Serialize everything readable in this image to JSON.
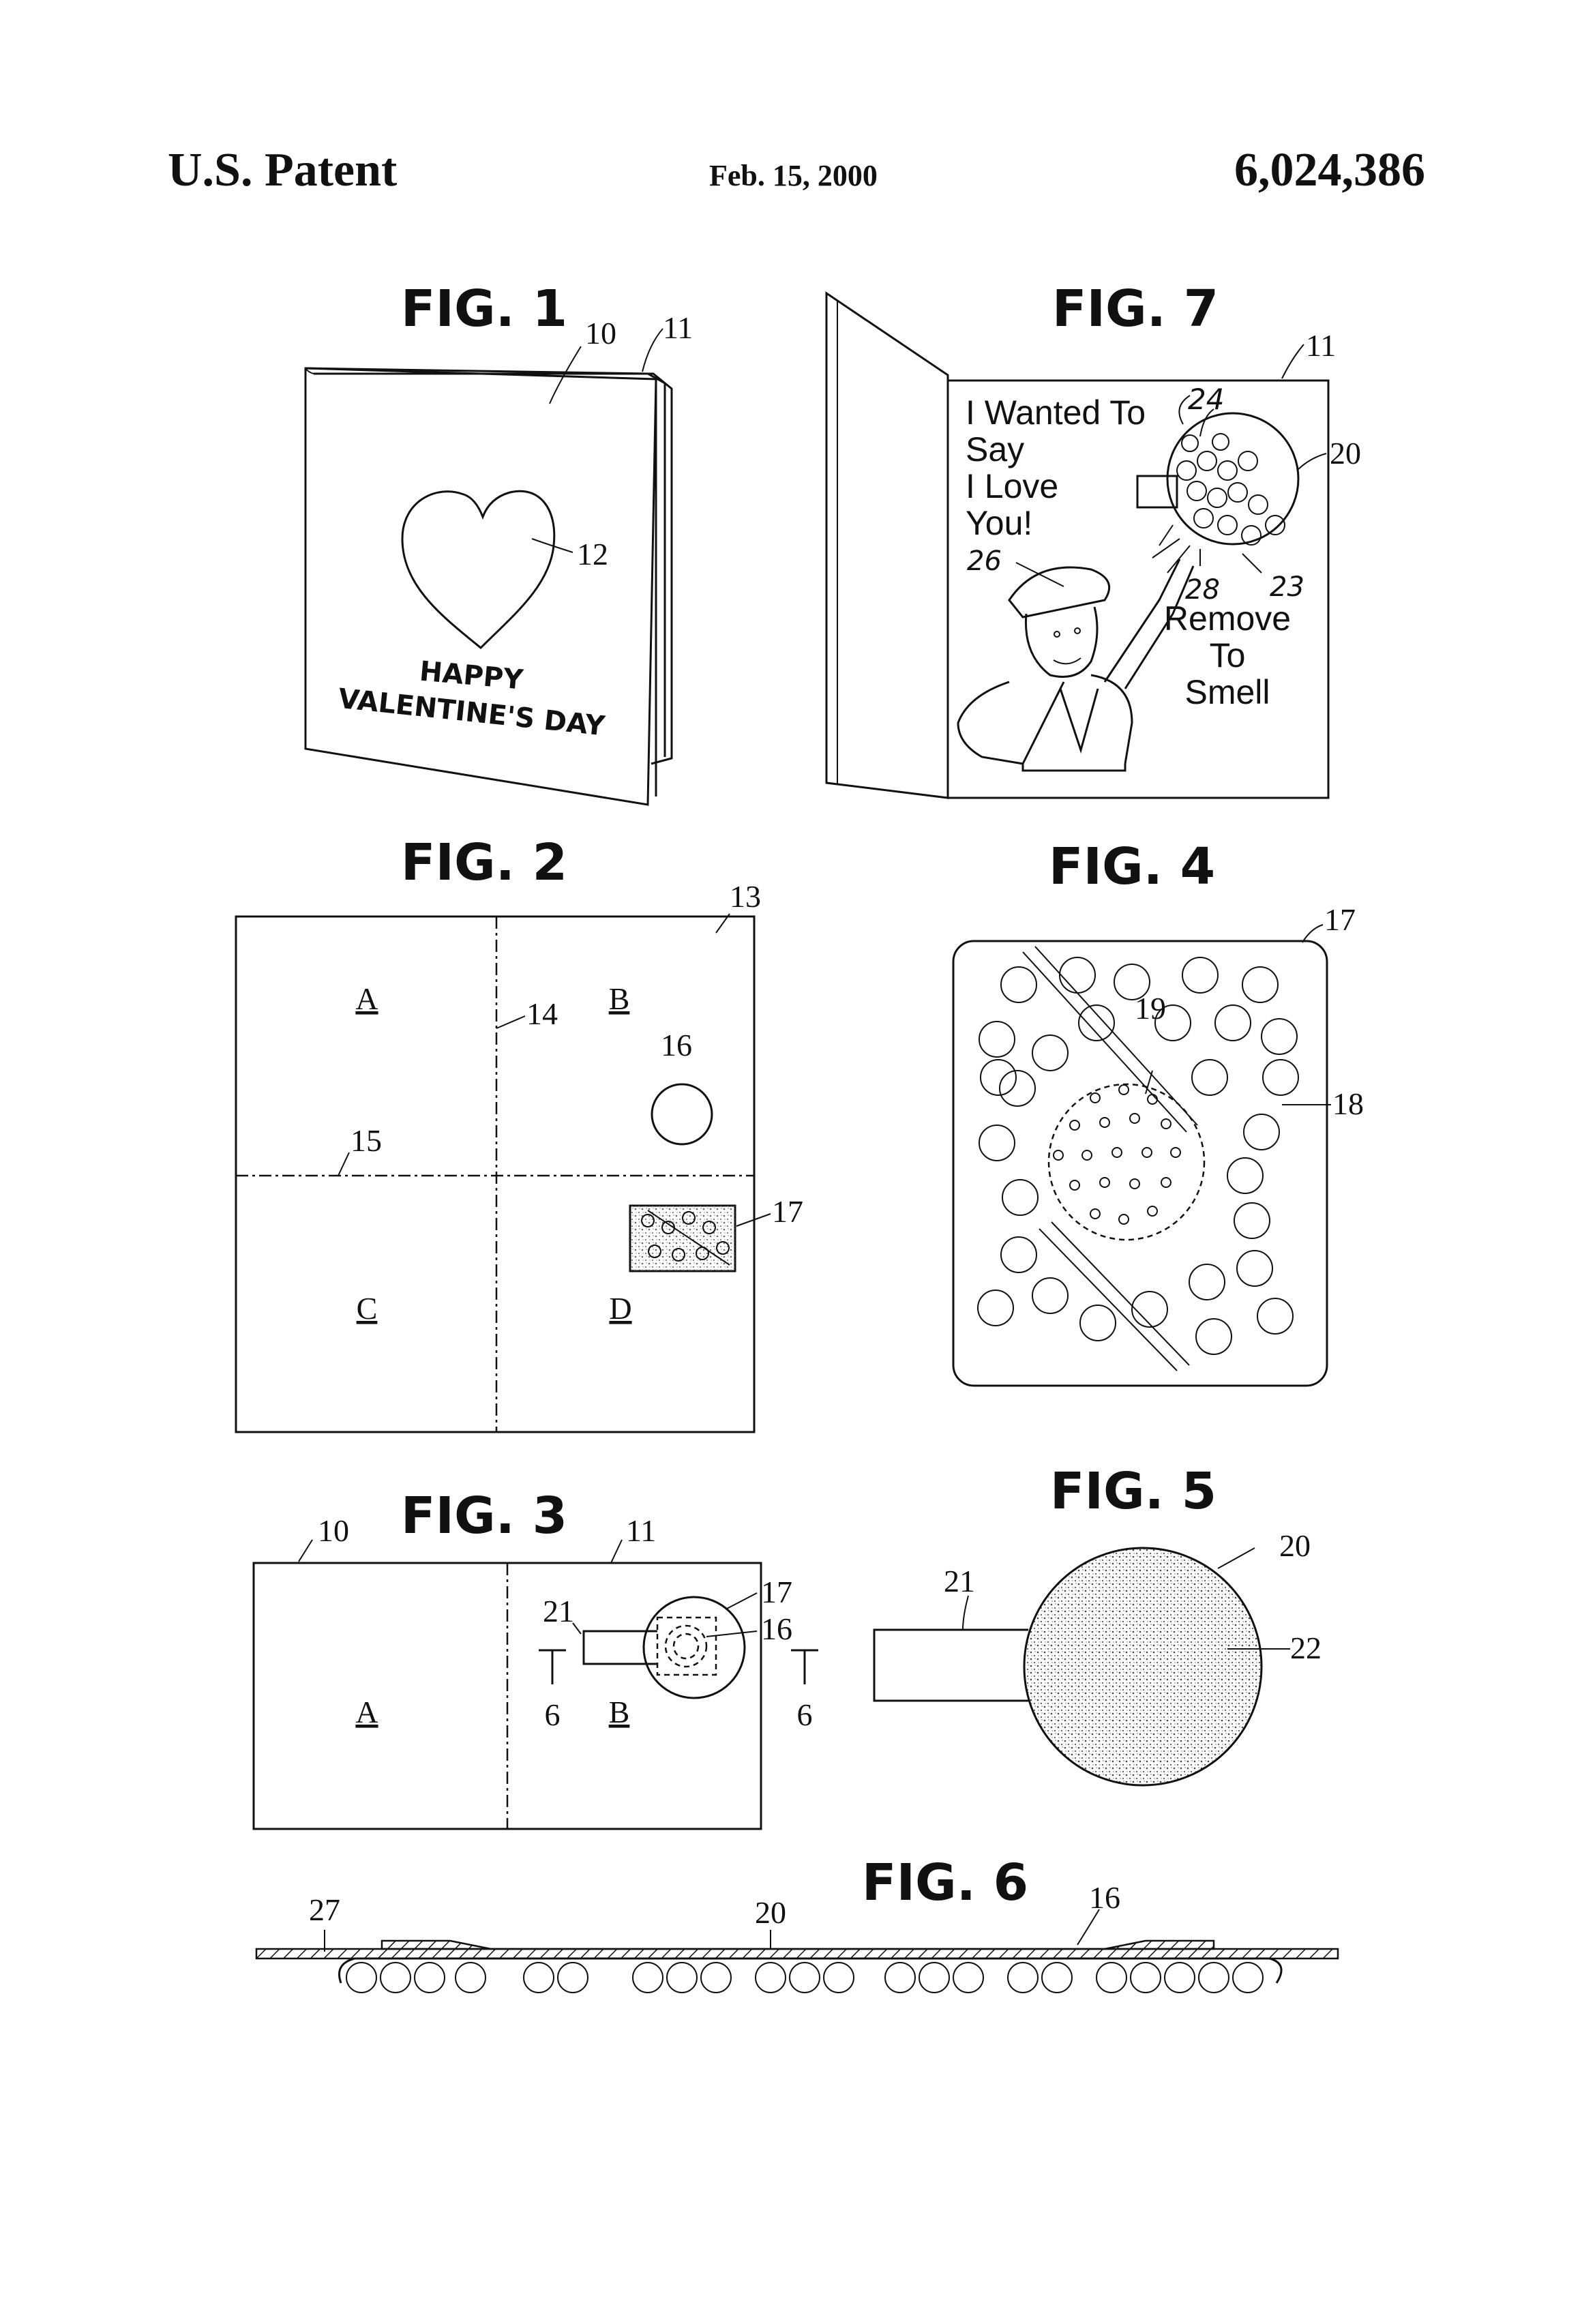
{
  "header": {
    "left": "U.S. Patent",
    "date": "Feb. 15, 2000",
    "patent_number": "6,024,386"
  },
  "figures": {
    "fig1": {
      "title": "FIG. 1",
      "refs": {
        "r10": "10",
        "r11": "11",
        "r12": "12"
      },
      "card_text_line1": "HAPPY",
      "card_text_line2": "VALENTINE'S DAY"
    },
    "fig7": {
      "title": "FIG. 7",
      "refs": {
        "r11": "11",
        "r20": "20",
        "r23": "23",
        "r24": "24",
        "r26": "26",
        "r28": "28"
      },
      "message": [
        "I Wanted To",
        "Say",
        "I Love",
        "You!"
      ],
      "remove": [
        "Remove",
        "To",
        "Smell"
      ]
    },
    "fig2": {
      "title": "FIG. 2",
      "refs": {
        "r13": "13",
        "r14": "14",
        "r15": "15",
        "r16": "16",
        "r17": "17"
      },
      "panels": {
        "a": "A",
        "b": "B",
        "c": "C",
        "d": "D"
      }
    },
    "fig4": {
      "title": "FIG. 4",
      "refs": {
        "r17": "17",
        "r18": "18",
        "r19": "19"
      }
    },
    "fig3": {
      "title": "FIG. 3",
      "refs": {
        "r10": "10",
        "r11": "11",
        "r16": "16",
        "r17": "17",
        "r21": "21",
        "sec_left": "6",
        "sec_right": "6"
      },
      "panels": {
        "a": "A",
        "b": "B"
      }
    },
    "fig5": {
      "title": "FIG. 5",
      "refs": {
        "r20": "20",
        "r21": "21",
        "r22": "22"
      }
    },
    "fig6": {
      "title": "FIG. 6",
      "refs": {
        "r16": "16",
        "r20": "20",
        "r27": "27"
      }
    }
  }
}
